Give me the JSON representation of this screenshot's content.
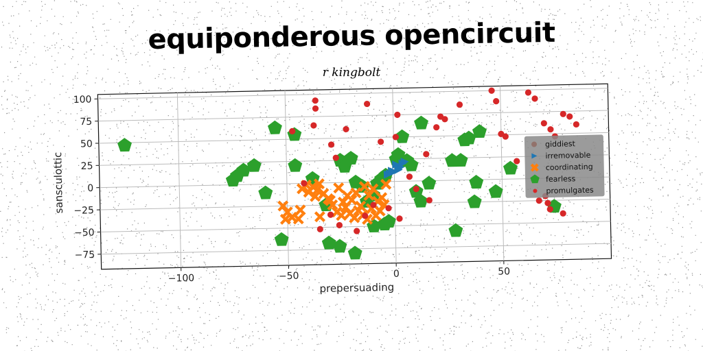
{
  "chart_data": {
    "type": "scatter",
    "title": "equiponderous opencircuit",
    "subtitle": "r kingbolt",
    "xlabel": "prepersuading",
    "ylabel": "sansculottic",
    "xlim": [
      -137,
      100
    ],
    "ylim": [
      -92,
      105
    ],
    "xticks": [
      -100,
      -50,
      0,
      50
    ],
    "yticks": [
      -75,
      -50,
      -25,
      0,
      25,
      50,
      75,
      100
    ],
    "grid": true,
    "legend": "right",
    "series": [
      {
        "name": "giddiest",
        "marker": "circle",
        "color": "#8c564b",
        "points": []
      },
      {
        "name": "irremovable",
        "marker": "triangle-right",
        "color": "#1f77b4",
        "points": [
          [
            -2,
            9
          ],
          [
            0,
            11
          ],
          [
            2,
            13
          ],
          [
            3,
            16
          ],
          [
            1,
            19
          ],
          [
            4,
            20
          ],
          [
            -1,
            12
          ],
          [
            5,
            22
          ],
          [
            -3,
            8
          ],
          [
            2,
            14
          ]
        ]
      },
      {
        "name": "coordinating",
        "marker": "x",
        "color": "#ff7f0e",
        "points": [
          [
            -52,
            -25
          ],
          [
            -50,
            -32
          ],
          [
            -48,
            -38
          ],
          [
            -45,
            -40
          ],
          [
            -51,
            -40
          ],
          [
            -43,
            -6
          ],
          [
            -41,
            -2
          ],
          [
            -40,
            -10
          ],
          [
            -38,
            -4
          ],
          [
            -36,
            -8
          ],
          [
            -35,
            -1
          ],
          [
            -33,
            -12
          ],
          [
            -31,
            -18
          ],
          [
            -29,
            -25
          ],
          [
            -27,
            -33
          ],
          [
            -25,
            -37
          ],
          [
            -23,
            -28
          ],
          [
            -21,
            -35
          ],
          [
            -19,
            -40
          ],
          [
            -17,
            -32
          ],
          [
            -15,
            -37
          ],
          [
            -13,
            -42
          ],
          [
            -11,
            -30
          ],
          [
            -9,
            -38
          ],
          [
            -7,
            -33
          ],
          [
            -35,
            -38
          ],
          [
            -30,
            -20
          ],
          [
            -24,
            -22
          ],
          [
            -18,
            -12
          ],
          [
            -14,
            -5
          ],
          [
            -12,
            -15
          ],
          [
            -8,
            -22
          ],
          [
            -10,
            -8
          ],
          [
            -6,
            -18
          ],
          [
            -5,
            -26
          ],
          [
            -4,
            -3
          ],
          [
            -26,
            -6
          ],
          [
            -22,
            -15
          ],
          [
            -20,
            -20
          ],
          [
            -16,
            -27
          ],
          [
            -44,
            -30
          ],
          [
            -37,
            -15
          ]
        ]
      },
      {
        "name": "fearless",
        "marker": "pentagon",
        "color": "#2ca02c",
        "points": [
          [
            -125,
            47
          ],
          [
            -55,
            63
          ],
          [
            -46,
            55
          ],
          [
            -65,
            21
          ],
          [
            -70,
            16
          ],
          [
            -73,
            10
          ],
          [
            -75,
            5
          ],
          [
            -60,
            -10
          ],
          [
            -46,
            20
          ],
          [
            -38,
            5
          ],
          [
            -32,
            -25
          ],
          [
            -25,
            25
          ],
          [
            -23,
            18
          ],
          [
            -20,
            27
          ],
          [
            -18,
            0
          ],
          [
            -15,
            -5
          ],
          [
            -13,
            -22
          ],
          [
            -10,
            -15
          ],
          [
            -8,
            -2
          ],
          [
            -6,
            3
          ],
          [
            -4,
            7
          ],
          [
            -3,
            -45
          ],
          [
            1,
            25
          ],
          [
            2,
            30
          ],
          [
            4,
            50
          ],
          [
            6,
            23
          ],
          [
            8,
            18
          ],
          [
            10,
            -12
          ],
          [
            12,
            -23
          ],
          [
            13,
            65
          ],
          [
            16,
            -3
          ],
          [
            27,
            22
          ],
          [
            28,
            -57
          ],
          [
            31,
            22
          ],
          [
            33,
            45
          ],
          [
            35,
            47
          ],
          [
            37,
            -25
          ],
          [
            38,
            -3
          ],
          [
            40,
            54
          ],
          [
            47,
            -14
          ],
          [
            54,
            12
          ],
          [
            74,
            -32
          ],
          [
            -31,
            -68
          ],
          [
            -26,
            -72
          ],
          [
            -19,
            -80
          ],
          [
            -53,
            -63
          ],
          [
            -10,
            -50
          ],
          [
            -5,
            -48
          ]
        ]
      },
      {
        "name": "promulgates",
        "marker": "dot",
        "color": "#d62728",
        "points": [
          [
            -36,
            93
          ],
          [
            -36,
            84
          ],
          [
            -37,
            65
          ],
          [
            -47,
            59
          ],
          [
            -22,
            60
          ],
          [
            -29,
            43
          ],
          [
            -12,
            88
          ],
          [
            2,
            75
          ],
          [
            1,
            50
          ],
          [
            -6,
            45
          ],
          [
            -27,
            28
          ],
          [
            -42,
            0
          ],
          [
            7,
            5
          ],
          [
            15,
            30
          ],
          [
            16,
            -22
          ],
          [
            20,
            60
          ],
          [
            22,
            72
          ],
          [
            24,
            69
          ],
          [
            31,
            85
          ],
          [
            46,
            100
          ],
          [
            48,
            88
          ],
          [
            50,
            51
          ],
          [
            52,
            48
          ],
          [
            57,
            20
          ],
          [
            63,
            97
          ],
          [
            66,
            90
          ],
          [
            70,
            62
          ],
          [
            73,
            55
          ],
          [
            75,
            47
          ],
          [
            79,
            72
          ],
          [
            82,
            69
          ],
          [
            85,
            60
          ],
          [
            71,
            -28
          ],
          [
            72,
            -35
          ],
          [
            78,
            -40
          ],
          [
            67,
            -25
          ],
          [
            70,
            -20
          ],
          [
            -30,
            -36
          ],
          [
            -26,
            -48
          ],
          [
            -14,
            -38
          ],
          [
            -10,
            -26
          ],
          [
            -3,
            -30
          ],
          [
            2,
            -42
          ],
          [
            -18,
            -55
          ],
          [
            -35,
            -52
          ],
          [
            10,
            -9
          ]
        ]
      }
    ]
  }
}
